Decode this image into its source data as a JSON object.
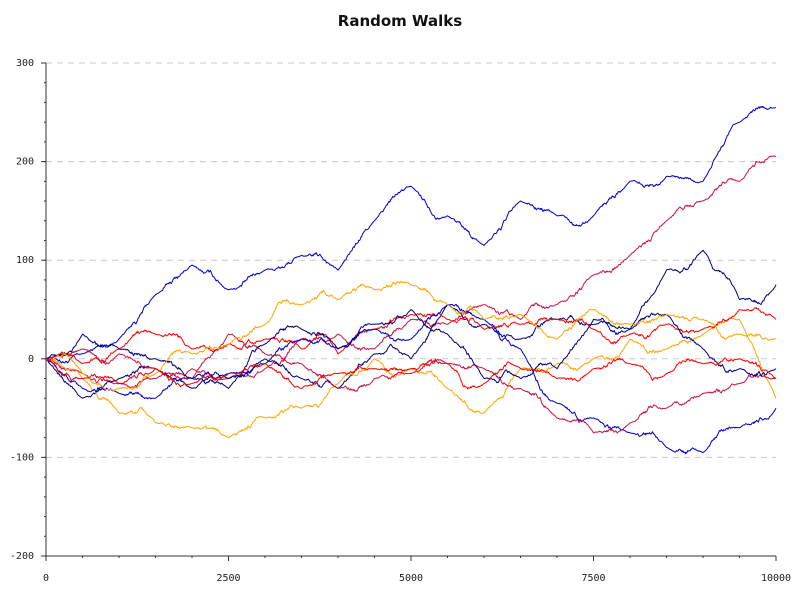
{
  "chart_data": {
    "type": "line",
    "title": "Random Walks",
    "xlabel": "",
    "ylabel": "",
    "xlim": [
      0,
      10000
    ],
    "ylim": [
      -200,
      300
    ],
    "x_ticks": [
      0,
      2500,
      5000,
      7500,
      10000
    ],
    "y_ticks": [
      300,
      200,
      100,
      0,
      -100,
      -200
    ],
    "grid": "horizontal dashed",
    "legend": "none",
    "series": [
      {
        "color": "#0000cc",
        "x": [
          0,
          500,
          1000,
          1500,
          2000,
          2500,
          3000,
          3500,
          4000,
          4500,
          5000,
          5500,
          6000,
          6500,
          7000,
          7500,
          8000,
          8500,
          9000,
          9500,
          10000
        ],
        "values": [
          0,
          5,
          20,
          65,
          95,
          70,
          90,
          105,
          90,
          140,
          175,
          145,
          115,
          160,
          145,
          145,
          180,
          185,
          180,
          240,
          255
        ]
      },
      {
        "color": "#cc1144",
        "x": [
          0,
          500,
          1000,
          1500,
          2000,
          2500,
          3000,
          3500,
          4000,
          4500,
          5000,
          5500,
          6000,
          6500,
          7000,
          7500,
          8000,
          8500,
          9000,
          9500,
          10000
        ],
        "values": [
          0,
          -15,
          -25,
          -20,
          -10,
          -20,
          -10,
          20,
          25,
          10,
          40,
          35,
          55,
          40,
          55,
          85,
          105,
          140,
          160,
          180,
          205
        ]
      },
      {
        "color": "#000080",
        "x": [
          0,
          500,
          1000,
          1500,
          2000,
          2500,
          3000,
          3500,
          4000,
          4500,
          5000,
          5500,
          6000,
          6500,
          7000,
          7500,
          8000,
          8500,
          9000,
          9500,
          10000
        ],
        "values": [
          0,
          -40,
          -20,
          -10,
          -30,
          -20,
          0,
          -20,
          -30,
          5,
          0,
          55,
          35,
          20,
          40,
          35,
          30,
          90,
          110,
          60,
          75
        ]
      },
      {
        "color": "#ffa500",
        "x": [
          0,
          500,
          1000,
          1500,
          2000,
          2500,
          3000,
          3500,
          4000,
          4500,
          5000,
          5500,
          6000,
          6500,
          7000,
          7500,
          8000,
          8500,
          9000,
          9500,
          10000
        ],
        "values": [
          0,
          -20,
          -55,
          -65,
          -70,
          -80,
          -60,
          -50,
          -25,
          0,
          -10,
          -30,
          -55,
          -10,
          -5,
          0,
          20,
          10,
          25,
          40,
          -40
        ]
      },
      {
        "color": "#ff0000",
        "x": [
          0,
          500,
          1000,
          1500,
          2000,
          2500,
          3000,
          3500,
          4000,
          4500,
          5000,
          5500,
          6000,
          6500,
          7000,
          7500,
          8000,
          8500,
          9000,
          9500,
          10000
        ],
        "values": [
          0,
          -5,
          10,
          25,
          10,
          15,
          20,
          10,
          5,
          30,
          45,
          40,
          30,
          35,
          40,
          30,
          25,
          35,
          30,
          50,
          40
        ]
      },
      {
        "color": "#0000cc",
        "x": [
          0,
          500,
          1000,
          1500,
          2000,
          2500,
          3000,
          3500,
          4000,
          4500,
          5000,
          5500,
          6000,
          6500,
          7000,
          7500,
          8000,
          8500,
          9000,
          9500,
          10000
        ],
        "values": [
          0,
          -30,
          -35,
          -40,
          -20,
          -15,
          -5,
          20,
          10,
          30,
          20,
          55,
          40,
          10,
          -45,
          -60,
          -75,
          -90,
          -95,
          -70,
          -50
        ]
      },
      {
        "color": "#cc1144",
        "x": [
          0,
          500,
          1000,
          1500,
          2000,
          2500,
          3000,
          3500,
          4000,
          4500,
          5000,
          5500,
          6000,
          6500,
          7000,
          7500,
          8000,
          8500,
          9000,
          9500,
          10000
        ],
        "values": [
          0,
          10,
          5,
          -10,
          -20,
          25,
          5,
          -5,
          -30,
          -20,
          -15,
          -5,
          -10,
          -30,
          -60,
          -75,
          -65,
          -50,
          -35,
          -25,
          -20
        ]
      },
      {
        "color": "#000080",
        "x": [
          0,
          500,
          1000,
          1500,
          2000,
          2500,
          3000,
          3500,
          4000,
          4500,
          5000,
          5500,
          6000,
          6500,
          7000,
          7500,
          8000,
          8500,
          9000,
          9500,
          10000
        ],
        "values": [
          0,
          25,
          10,
          0,
          -20,
          -30,
          15,
          30,
          10,
          35,
          50,
          25,
          -20,
          -20,
          -10,
          40,
          30,
          45,
          10,
          -10,
          -10
        ]
      },
      {
        "color": "#ffa500",
        "x": [
          0,
          500,
          1000,
          1500,
          2000,
          2500,
          3000,
          3500,
          4000,
          4500,
          5000,
          5500,
          6000,
          6500,
          7000,
          7500,
          8000,
          8500,
          9000,
          9500,
          10000
        ],
        "values": [
          0,
          -15,
          -30,
          -15,
          5,
          15,
          35,
          55,
          60,
          70,
          75,
          55,
          40,
          45,
          20,
          50,
          35,
          45,
          40,
          25,
          20
        ]
      },
      {
        "color": "#ff0000",
        "x": [
          0,
          500,
          1000,
          1500,
          2000,
          2500,
          3000,
          3500,
          4000,
          4500,
          5000,
          5500,
          6000,
          6500,
          7000,
          7500,
          8000,
          8500,
          9000,
          9500,
          10000
        ],
        "values": [
          0,
          -20,
          -25,
          -10,
          -25,
          -15,
          -5,
          -30,
          -15,
          -10,
          -10,
          -5,
          -25,
          -10,
          -20,
          -10,
          -5,
          -15,
          -5,
          0,
          -20
        ]
      }
    ]
  }
}
